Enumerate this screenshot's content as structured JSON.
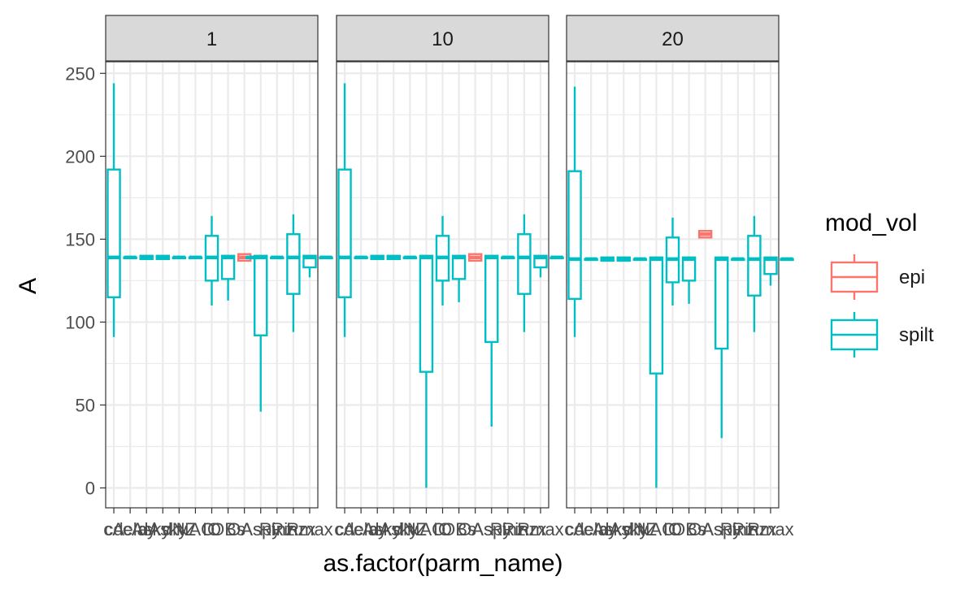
{
  "chart_data": {
    "type": "boxplot",
    "facet_by": "",
    "xlabel": "as.factor(parm_name)",
    "ylabel": "A",
    "ylim": [
      -12,
      257
    ],
    "yticks": [
      0,
      50,
      100,
      150,
      200,
      250
    ],
    "grid": true,
    "colors": {
      "epi": "#F8766D",
      "spilt": "#00BFC4",
      "strip_fill": "#D9D9D9",
      "grid": "#EBEBEB"
    },
    "legend": {
      "title": "mod_vol",
      "position": "right",
      "entries": [
        "epi",
        "spilt"
      ]
    },
    "categories": [
      "cA",
      "cdelay",
      "cAsky",
      "dAsky",
      "dNZ",
      "NAO",
      "IO",
      "OBs",
      "OAs",
      "Aspy",
      "Rinz",
      "Rinzx",
      "Rmax"
    ],
    "panels": [
      {
        "label": "1",
        "boxes": [
          {
            "cat": 0,
            "group": "spilt",
            "lower": 91,
            "q1": 115,
            "median": 139,
            "q3": 192,
            "upper": 244
          },
          {
            "cat": 1,
            "group": "spilt",
            "lower": 139,
            "q1": 139,
            "median": 139,
            "q3": 139,
            "upper": 139
          },
          {
            "cat": 2,
            "group": "spilt",
            "lower": 138,
            "q1": 138,
            "median": 139,
            "q3": 140,
            "upper": 140
          },
          {
            "cat": 3,
            "group": "spilt",
            "lower": 138,
            "q1": 138,
            "median": 139,
            "q3": 140,
            "upper": 140
          },
          {
            "cat": 4,
            "group": "spilt",
            "lower": 139,
            "q1": 139,
            "median": 139,
            "q3": 139,
            "upper": 139
          },
          {
            "cat": 5,
            "group": "spilt",
            "lower": 139,
            "q1": 139,
            "median": 139,
            "q3": 139,
            "upper": 139
          },
          {
            "cat": 6,
            "group": "spilt",
            "lower": 110,
            "q1": 125,
            "median": 139,
            "q3": 152,
            "upper": 164
          },
          {
            "cat": 7,
            "group": "spilt",
            "lower": 113,
            "q1": 126,
            "median": 139,
            "q3": 140,
            "upper": 140
          },
          {
            "cat": 8,
            "group": "epi",
            "lower": 137,
            "q1": 137,
            "median": 139,
            "q3": 141,
            "upper": 141
          },
          {
            "cat": 8.5,
            "group": "spilt",
            "lower": 139,
            "q1": 139,
            "median": 139,
            "q3": 139,
            "upper": 139
          },
          {
            "cat": 9,
            "group": "spilt",
            "lower": 46,
            "q1": 92,
            "median": 139,
            "q3": 140,
            "upper": 140
          },
          {
            "cat": 10,
            "group": "spilt",
            "lower": 139,
            "q1": 139,
            "median": 139,
            "q3": 139,
            "upper": 139
          },
          {
            "cat": 11,
            "group": "spilt",
            "lower": 94,
            "q1": 117,
            "median": 139,
            "q3": 153,
            "upper": 165
          },
          {
            "cat": 12,
            "group": "spilt",
            "lower": 127,
            "q1": 133,
            "median": 139,
            "q3": 140,
            "upper": 140
          },
          {
            "cat": 13,
            "group": "spilt",
            "lower": 139,
            "q1": 139,
            "median": 139,
            "q3": 139,
            "upper": 139
          }
        ]
      },
      {
        "label": "10",
        "boxes": [
          {
            "cat": 0,
            "group": "spilt",
            "lower": 91,
            "q1": 115,
            "median": 139,
            "q3": 192,
            "upper": 244
          },
          {
            "cat": 1,
            "group": "spilt",
            "lower": 139,
            "q1": 139,
            "median": 139,
            "q3": 139,
            "upper": 139
          },
          {
            "cat": 2,
            "group": "spilt",
            "lower": 138,
            "q1": 138,
            "median": 139,
            "q3": 140,
            "upper": 140
          },
          {
            "cat": 3,
            "group": "spilt",
            "lower": 138,
            "q1": 138,
            "median": 139,
            "q3": 140,
            "upper": 140
          },
          {
            "cat": 4,
            "group": "spilt",
            "lower": 139,
            "q1": 139,
            "median": 139,
            "q3": 139,
            "upper": 139
          },
          {
            "cat": 5,
            "group": "spilt",
            "lower": 0,
            "q1": 70,
            "median": 139,
            "q3": 140,
            "upper": 140
          },
          {
            "cat": 6,
            "group": "spilt",
            "lower": 110,
            "q1": 125,
            "median": 139,
            "q3": 152,
            "upper": 164
          },
          {
            "cat": 7,
            "group": "spilt",
            "lower": 112,
            "q1": 126,
            "median": 139,
            "q3": 140,
            "upper": 140
          },
          {
            "cat": 8,
            "group": "epi",
            "lower": 137,
            "q1": 137,
            "median": 139,
            "q3": 141,
            "upper": 141
          },
          {
            "cat": 9,
            "group": "spilt",
            "lower": 37,
            "q1": 88,
            "median": 139,
            "q3": 140,
            "upper": 140
          },
          {
            "cat": 10,
            "group": "spilt",
            "lower": 139,
            "q1": 139,
            "median": 139,
            "q3": 139,
            "upper": 139
          },
          {
            "cat": 11,
            "group": "spilt",
            "lower": 94,
            "q1": 117,
            "median": 139,
            "q3": 153,
            "upper": 165
          },
          {
            "cat": 12,
            "group": "spilt",
            "lower": 127,
            "q1": 133,
            "median": 139,
            "q3": 140,
            "upper": 140
          },
          {
            "cat": 13,
            "group": "spilt",
            "lower": 139,
            "q1": 139,
            "median": 139,
            "q3": 139,
            "upper": 139
          }
        ]
      },
      {
        "label": "20",
        "boxes": [
          {
            "cat": 0,
            "group": "spilt",
            "lower": 91,
            "q1": 114,
            "median": 138,
            "q3": 191,
            "upper": 242
          },
          {
            "cat": 1,
            "group": "spilt",
            "lower": 138,
            "q1": 138,
            "median": 138,
            "q3": 138,
            "upper": 138
          },
          {
            "cat": 2,
            "group": "spilt",
            "lower": 137,
            "q1": 137,
            "median": 138,
            "q3": 139,
            "upper": 139
          },
          {
            "cat": 3,
            "group": "spilt",
            "lower": 137,
            "q1": 137,
            "median": 138,
            "q3": 139,
            "upper": 139
          },
          {
            "cat": 4,
            "group": "spilt",
            "lower": 138,
            "q1": 138,
            "median": 138,
            "q3": 138,
            "upper": 138
          },
          {
            "cat": 5,
            "group": "spilt",
            "lower": 0,
            "q1": 69,
            "median": 138,
            "q3": 139,
            "upper": 139
          },
          {
            "cat": 6,
            "group": "spilt",
            "lower": 110,
            "q1": 124,
            "median": 138,
            "q3": 151,
            "upper": 163
          },
          {
            "cat": 7,
            "group": "spilt",
            "lower": 111,
            "q1": 125,
            "median": 138,
            "q3": 139,
            "upper": 139
          },
          {
            "cat": 8,
            "group": "epi",
            "lower": 151,
            "q1": 151,
            "median": 153,
            "q3": 155,
            "upper": 155
          },
          {
            "cat": 9,
            "group": "spilt",
            "lower": 30,
            "q1": 84,
            "median": 138,
            "q3": 139,
            "upper": 139
          },
          {
            "cat": 10,
            "group": "spilt",
            "lower": 138,
            "q1": 138,
            "median": 138,
            "q3": 138,
            "upper": 138
          },
          {
            "cat": 11,
            "group": "spilt",
            "lower": 94,
            "q1": 116,
            "median": 138,
            "q3": 152,
            "upper": 164
          },
          {
            "cat": 12,
            "group": "spilt",
            "lower": 122,
            "q1": 129,
            "median": 138,
            "q3": 139,
            "upper": 139
          },
          {
            "cat": 13,
            "group": "spilt",
            "lower": 138,
            "q1": 138,
            "median": 138,
            "q3": 138,
            "upper": 138
          }
        ]
      }
    ],
    "xtick_labels": [
      "cA",
      "cdelay",
      "cAsky",
      "dAsky",
      "dNZ",
      "NAO",
      "IO",
      "OBs",
      "OAs",
      "Aspy",
      "Rinz",
      "Rinzx",
      "Rmax"
    ]
  }
}
